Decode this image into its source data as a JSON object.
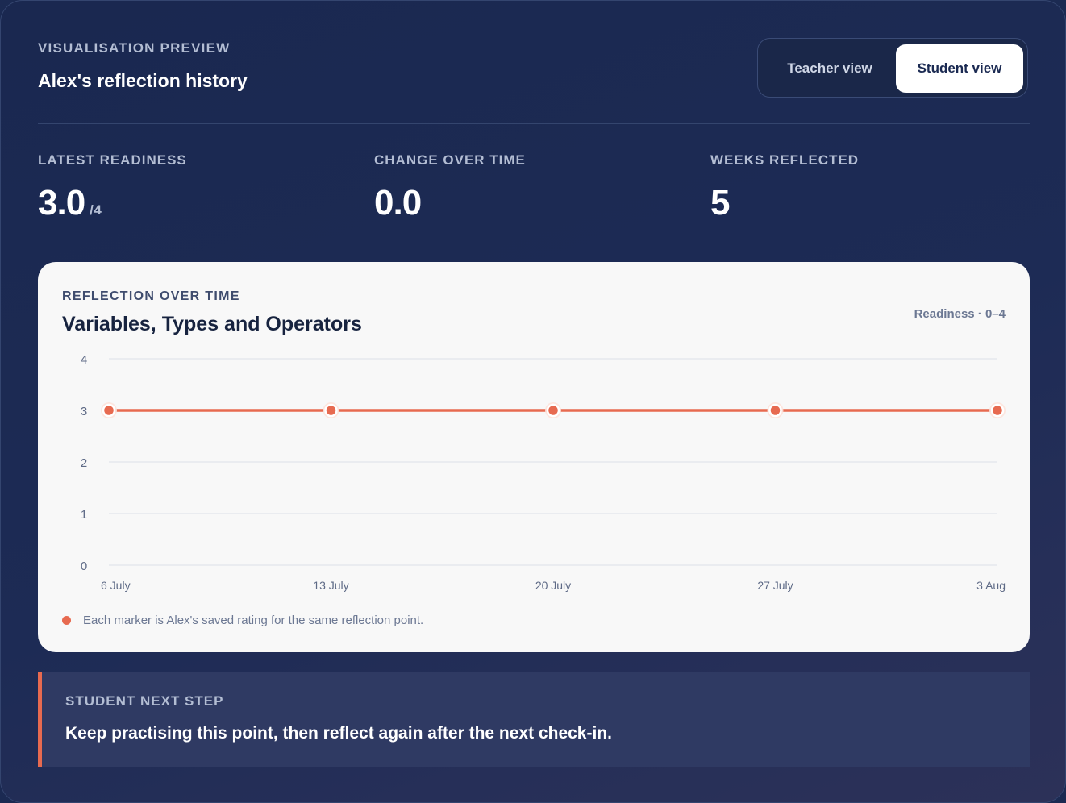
{
  "header": {
    "eyebrow": "VISUALISATION PREVIEW",
    "title": "Alex's reflection history"
  },
  "view_toggle": {
    "teacher_label": "Teacher view",
    "student_label": "Student view",
    "selected": "Student view"
  },
  "metrics": [
    {
      "label": "LATEST READINESS",
      "value": "3.0",
      "unit": "/4"
    },
    {
      "label": "CHANGE OVER TIME",
      "value": "0.0"
    },
    {
      "label": "WEEKS REFLECTED",
      "value": "5"
    }
  ],
  "chart_card": {
    "eyebrow": "REFLECTION OVER TIME",
    "scale_note": "Readiness · 0–4",
    "legend_text": "Each marker is Alex's saved rating for the same reflection point."
  },
  "chart_data": {
    "type": "line",
    "title": "Variables, Types and Operators",
    "categories": [
      "6 July",
      "13 July",
      "20 July",
      "27 July",
      "3 Aug"
    ],
    "values": [
      3,
      3,
      3,
      3,
      3
    ],
    "y_ticks": [
      0,
      1,
      2,
      3,
      4
    ],
    "ylim": [
      0,
      4
    ],
    "grid": true,
    "color": "#e76a50"
  },
  "next_step": {
    "eyebrow": "STUDENT NEXT STEP",
    "text": "Keep practising this point, then reflect again after the next check-in."
  }
}
